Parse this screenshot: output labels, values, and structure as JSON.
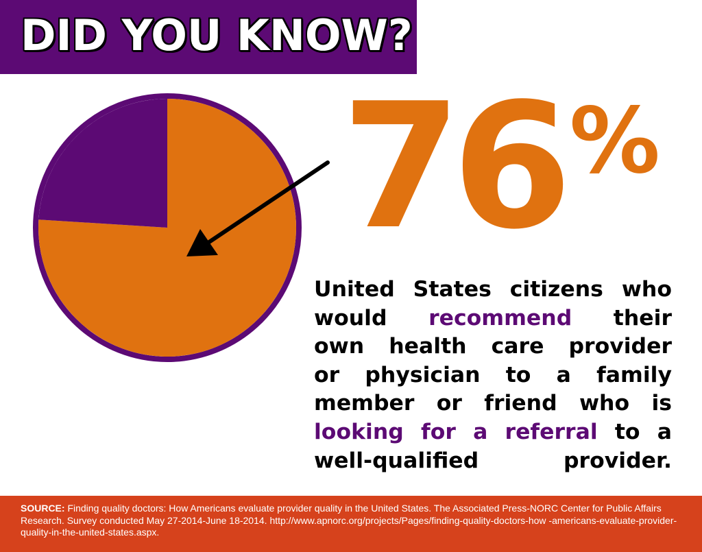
{
  "header": {
    "title": "DID YOU KNOW?"
  },
  "stat": {
    "value": "76",
    "unit": "%",
    "description": {
      "line1": "United States citizens who",
      "line2_pre": "would ",
      "line2_highlight": "recommend",
      "line2_post": " their",
      "line3": "own health care provider",
      "line4": "or physician to a family",
      "line5": "member or friend who is",
      "line6_highlight": "looking for a referral",
      "line6_post": " to a",
      "line7": "well-qualified provider."
    }
  },
  "footer": {
    "label": "SOURCE:",
    "text": " Finding quality doctors: How Americans evaluate provider quality in the United States. The Associated Press-NORC Center for Public Affairs Research. Survey conducted May 27-2014-June 18-2014. http://www.apnorc.org/projects/Pages/finding-quality-doctors-how -americans-evaluate-provider-quality-in-the-united-states.aspx."
  },
  "colors": {
    "purple": "#5c0a74",
    "orange": "#e07210",
    "footer_red": "#d6421c"
  },
  "chart_data": {
    "type": "pie",
    "slices": [
      {
        "value": 76,
        "color": "#e07210"
      },
      {
        "value": 24,
        "color": "#5c0a74"
      }
    ],
    "start_angle_deg": 0,
    "direction": "clockwise"
  }
}
